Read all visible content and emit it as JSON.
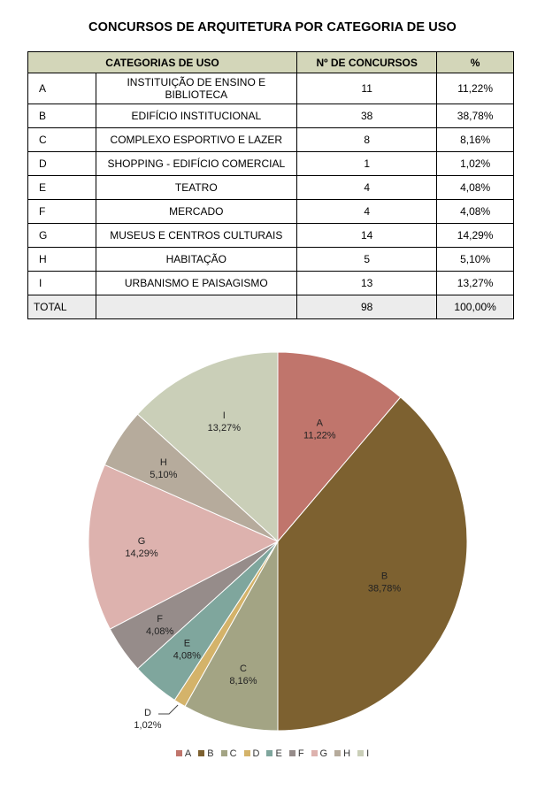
{
  "title": "CONCURSOS DE ARQUITETURA POR CATEGORIA DE USO",
  "table": {
    "headers": [
      "CATEGORIAS DE USO",
      "Nº DE CONCURSOS",
      "%"
    ],
    "rows": [
      {
        "code": "A",
        "category": "INSTITUIÇÃO DE ENSINO E BIBLIOTECA",
        "count": "11",
        "pct": "11,22%"
      },
      {
        "code": "B",
        "category": "EDIFÍCIO INSTITUCIONAL",
        "count": "38",
        "pct": "38,78%"
      },
      {
        "code": "C",
        "category": "COMPLEXO ESPORTIVO E LAZER",
        "count": "8",
        "pct": "8,16%"
      },
      {
        "code": "D",
        "category": "SHOPPING - EDIFÍCIO COMERCIAL",
        "count": "1",
        "pct": "1,02%"
      },
      {
        "code": "E",
        "category": "TEATRO",
        "count": "4",
        "pct": "4,08%"
      },
      {
        "code": "F",
        "category": "MERCADO",
        "count": "4",
        "pct": "4,08%"
      },
      {
        "code": "G",
        "category": "MUSEUS E CENTROS CULTURAIS",
        "count": "14",
        "pct": "14,29%"
      },
      {
        "code": "H",
        "category": "HABITAÇÃO",
        "count": "5",
        "pct": "5,10%"
      },
      {
        "code": "I",
        "category": "URBANISMO E PAISAGISMO",
        "count": "13",
        "pct": "13,27%"
      }
    ],
    "total": {
      "label": "TOTAL",
      "count": "98",
      "pct": "100,00%"
    }
  },
  "chart_data": {
    "type": "pie",
    "legend_position": "bottom",
    "categories": [
      "A",
      "B",
      "C",
      "D",
      "E",
      "F",
      "G",
      "H",
      "I"
    ],
    "values": [
      11.22,
      38.78,
      8.16,
      1.02,
      4.08,
      4.08,
      14.29,
      5.1,
      13.27
    ],
    "labels": [
      "11,22%",
      "38,78%",
      "8,16%",
      "1,02%",
      "4,08%",
      "4,08%",
      "14,29%",
      "5,10%",
      "13,27%"
    ],
    "colors": [
      "#c0756c",
      "#7d6130",
      "#a3a484",
      "#d4b36a",
      "#7fa69d",
      "#968c8a",
      "#ddb2ae",
      "#b6ab9c",
      "#cacfb8"
    ]
  }
}
